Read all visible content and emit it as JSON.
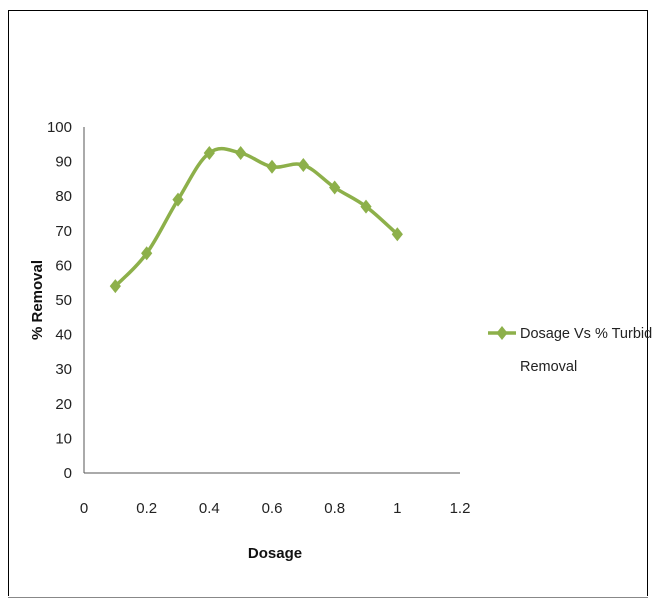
{
  "chart_data": {
    "type": "line",
    "title": "",
    "xlabel": "Dosage",
    "ylabel": "% Removal",
    "xlim": [
      0,
      1.2
    ],
    "ylim": [
      0,
      100
    ],
    "xticks": [
      "0",
      "0.2",
      "0.4",
      "0.6",
      "0.8",
      "1",
      "1.2"
    ],
    "yticks": [
      "0",
      "10",
      "20",
      "30",
      "40",
      "50",
      "60",
      "70",
      "80",
      "90",
      "100"
    ],
    "grid": false,
    "legend_position": "right",
    "series": [
      {
        "name": "Dosage Vs % Turbidity Removal",
        "color": "#8db04a",
        "marker": "diamond",
        "smooth": true,
        "x": [
          0.1,
          0.2,
          0.3,
          0.4,
          0.5,
          0.6,
          0.7,
          0.8,
          0.9,
          1.0
        ],
        "y": [
          54,
          63.5,
          79,
          92.5,
          92.5,
          88.5,
          89,
          82.5,
          77,
          69
        ]
      }
    ]
  },
  "legend": {
    "line1": "Dosage Vs % Turbidity",
    "line2": "Removal"
  }
}
